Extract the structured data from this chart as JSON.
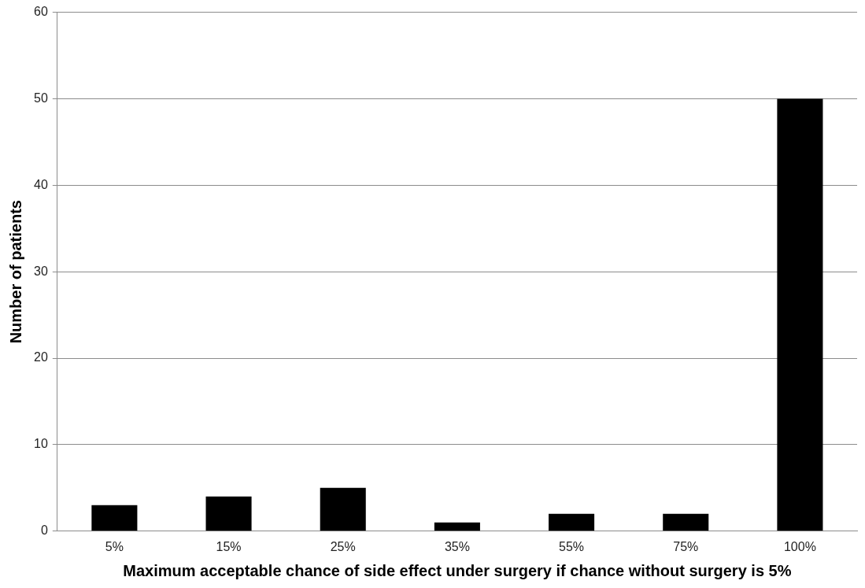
{
  "chart_data": {
    "type": "bar",
    "categories": [
      "5%",
      "15%",
      "25%",
      "35%",
      "55%",
      "75%",
      "100%"
    ],
    "values": [
      3,
      4,
      5,
      1,
      2,
      2,
      50
    ],
    "color": "#000000",
    "xlabel": "Maximum acceptable chance of side effect under surgery if chance without surgery is 5%",
    "ylabel": "Number of patients",
    "ylim": [
      0,
      60
    ],
    "yticks": [
      0,
      10,
      20,
      30,
      40,
      50,
      60
    ],
    "grid": "y",
    "legend": false
  }
}
